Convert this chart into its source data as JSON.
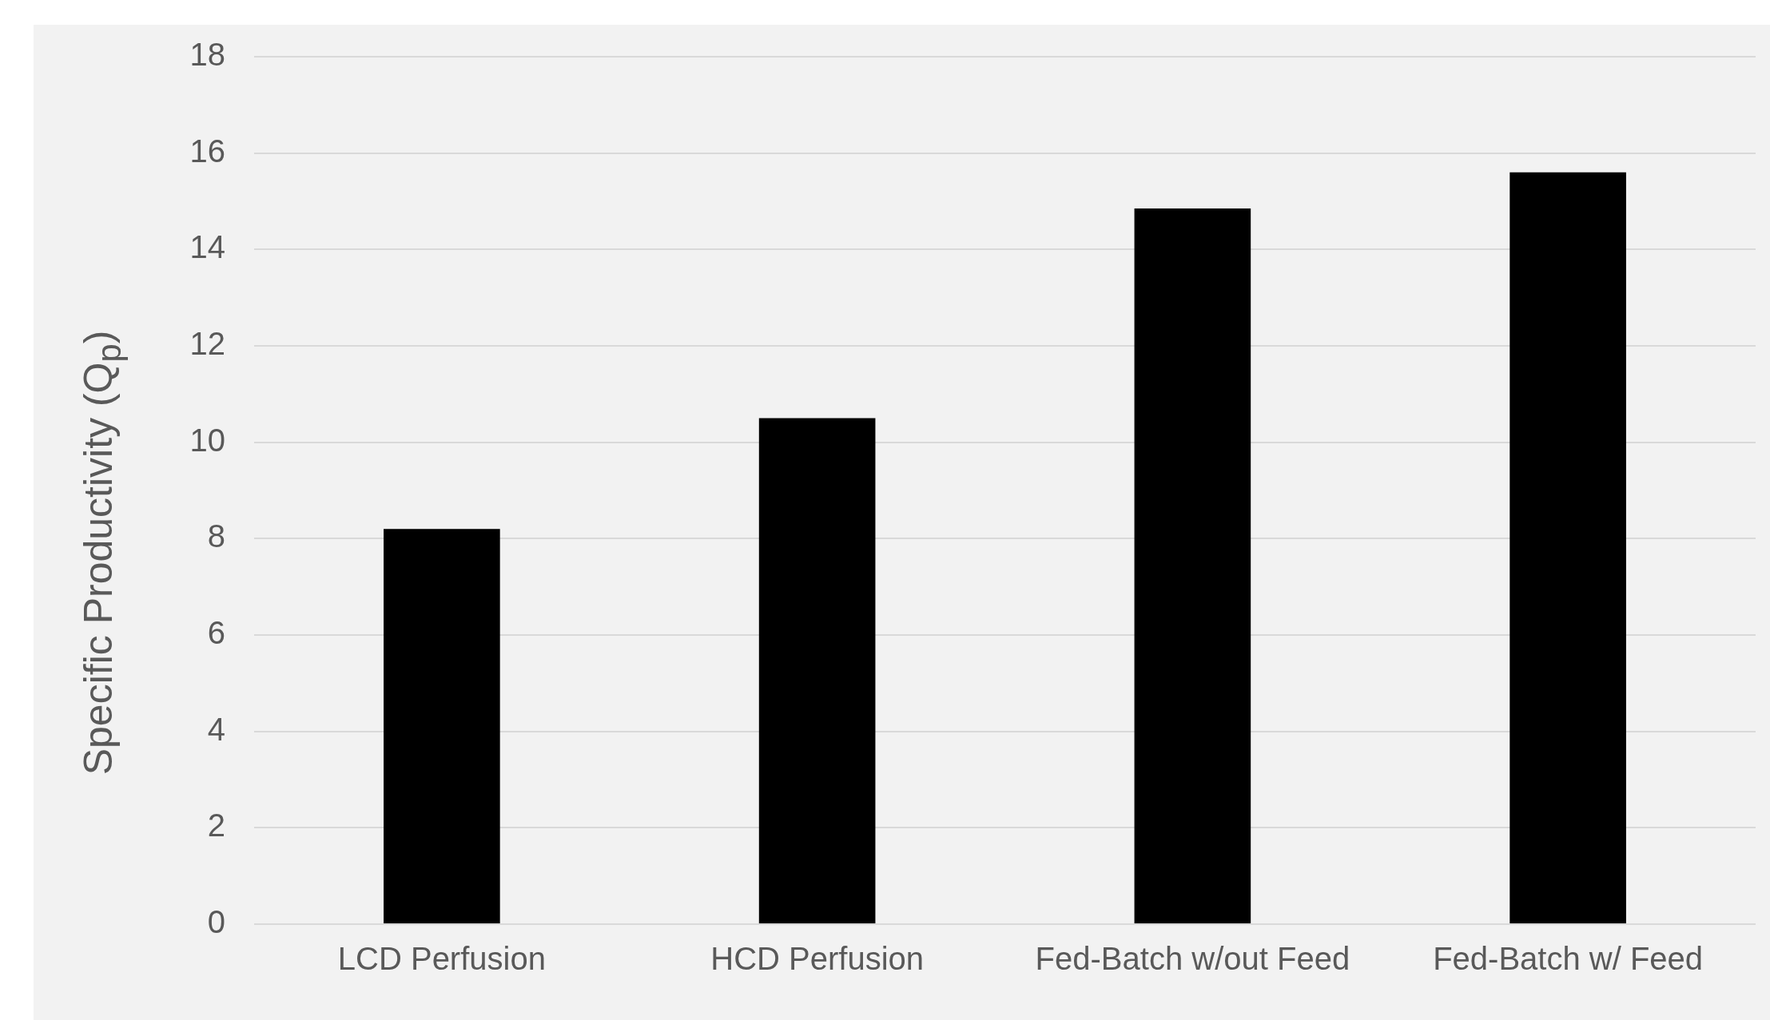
{
  "chart_data": {
    "type": "bar",
    "categories": [
      "LCD Perfusion",
      "HCD Perfusion",
      "Fed-Batch w/out Feed",
      "Fed-Batch w/ Feed"
    ],
    "values": [
      8.2,
      10.5,
      14.85,
      15.6
    ],
    "color": "#000000",
    "ylabel": "Specific Productivity (Q$_{p}$)",
    "ylim": [
      0,
      18
    ],
    "yticks": [
      0,
      2,
      4,
      6,
      8,
      10,
      12,
      14,
      16,
      18
    ],
    "grid": "y"
  }
}
